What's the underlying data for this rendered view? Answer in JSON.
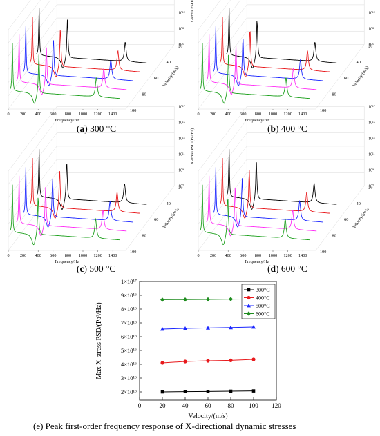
{
  "chart_data": [
    {
      "type": "line",
      "view": "3d-waterfall",
      "caption_letter": "a",
      "caption_text": "300 °C",
      "xlabel": "Frequency/Hz",
      "ylabel": "Velocity/(m/s)",
      "zlabel": "X-stress PSD/(Pa²/Hz)",
      "x_ticks": [
        "0",
        "200",
        "400",
        "600",
        "800",
        "1000",
        "1200",
        "1400"
      ],
      "y_ticks": [
        "20",
        "40",
        "60",
        "80",
        "100"
      ],
      "z_ticks": [
        "10⁶",
        "10⁸",
        "10¹⁰",
        "10¹²",
        "10¹⁴",
        "10¹⁶"
      ],
      "z_scale": "log",
      "series": [
        {
          "velocity": 20,
          "color": "#000000",
          "peaks_hz": [
            55,
            435,
            1210
          ]
        },
        {
          "velocity": 40,
          "color": "#e8191c",
          "peaks_hz": [
            55,
            430,
            1200
          ]
        },
        {
          "velocity": 60,
          "color": "#1a26ff",
          "peaks_hz": [
            55,
            425,
            1195
          ]
        },
        {
          "velocity": 80,
          "color": "#ff2ef5",
          "peaks_hz": [
            55,
            420,
            1190
          ]
        },
        {
          "velocity": 100,
          "color": "#1ea01e",
          "peaks_hz": [
            55,
            410,
            1180
          ]
        }
      ]
    },
    {
      "type": "line",
      "view": "3d-waterfall",
      "caption_letter": "b",
      "caption_text": "400 °C",
      "xlabel": "Frequency/Hz",
      "ylabel": "Velocity/(m/s)",
      "zlabel": "X-stress PSD/(Pa²/Hz)",
      "x_ticks": [
        "0",
        "200",
        "400",
        "600",
        "800",
        "1000",
        "1200",
        "1400"
      ],
      "y_ticks": [
        "20",
        "40",
        "60",
        "80",
        "100"
      ],
      "z_ticks": [
        "10⁶",
        "10⁸",
        "10¹⁰",
        "10¹²",
        "10¹⁴",
        "10¹⁶"
      ],
      "z_scale": "log",
      "series": [
        {
          "velocity": 20,
          "color": "#000000",
          "peaks_hz": [
            55,
            430,
            1205
          ]
        },
        {
          "velocity": 40,
          "color": "#e8191c",
          "peaks_hz": [
            55,
            425,
            1195
          ]
        },
        {
          "velocity": 60,
          "color": "#1a26ff",
          "peaks_hz": [
            55,
            420,
            1190
          ]
        },
        {
          "velocity": 80,
          "color": "#ff2ef5",
          "peaks_hz": [
            55,
            415,
            1185
          ]
        },
        {
          "velocity": 100,
          "color": "#1ea01e",
          "peaks_hz": [
            55,
            405,
            1175
          ]
        }
      ]
    },
    {
      "type": "line",
      "view": "3d-waterfall",
      "caption_letter": "c",
      "caption_text": "500 °C",
      "xlabel": "Frequency/Hz",
      "ylabel": "Velocity/(m/s)",
      "zlabel": "X-stress PSD/(Pa²/Hz)",
      "x_ticks": [
        "0",
        "200",
        "400",
        "600",
        "800",
        "1000",
        "1200",
        "1400"
      ],
      "y_ticks": [
        "20",
        "40",
        "60",
        "80",
        "100"
      ],
      "z_ticks": [
        "10⁷",
        "10⁹",
        "10¹¹",
        "10¹³",
        "10¹⁵",
        "10¹⁷"
      ],
      "z_scale": "log",
      "series": [
        {
          "velocity": 20,
          "color": "#000000",
          "peaks_hz": [
            55,
            425,
            1200
          ]
        },
        {
          "velocity": 40,
          "color": "#e8191c",
          "peaks_hz": [
            55,
            420,
            1190
          ]
        },
        {
          "velocity": 60,
          "color": "#1a26ff",
          "peaks_hz": [
            55,
            415,
            1185
          ]
        },
        {
          "velocity": 80,
          "color": "#ff2ef5",
          "peaks_hz": [
            55,
            410,
            1180
          ]
        },
        {
          "velocity": 100,
          "color": "#1ea01e",
          "peaks_hz": [
            55,
            400,
            1170
          ]
        }
      ]
    },
    {
      "type": "line",
      "view": "3d-waterfall",
      "caption_letter": "d",
      "caption_text": "600 °C",
      "xlabel": "Frequency/Hz",
      "ylabel": "Velocity/(m/s)",
      "zlabel": "X-stress PSD/（Pa²/Hz）",
      "x_ticks": [
        "0",
        "200",
        "400",
        "600",
        "800",
        "1000",
        "1200",
        "1400"
      ],
      "y_ticks": [
        "20",
        "40",
        "60",
        "80",
        "100"
      ],
      "z_ticks": [
        "10⁷",
        "10⁹",
        "10¹¹",
        "10¹³",
        "10¹⁵",
        "10¹⁷"
      ],
      "z_scale": "log",
      "series": [
        {
          "velocity": 20,
          "color": "#000000",
          "peaks_hz": [
            55,
            420,
            1195
          ]
        },
        {
          "velocity": 40,
          "color": "#e8191c",
          "peaks_hz": [
            55,
            415,
            1185
          ]
        },
        {
          "velocity": 60,
          "color": "#1a26ff",
          "peaks_hz": [
            55,
            410,
            1180
          ]
        },
        {
          "velocity": 80,
          "color": "#ff2ef5",
          "peaks_hz": [
            55,
            405,
            1175
          ]
        },
        {
          "velocity": 100,
          "color": "#1ea01e",
          "peaks_hz": [
            55,
            395,
            1165
          ]
        }
      ]
    },
    {
      "type": "line",
      "caption": "(e) Peak first-order frequency response of X-directional dynamic stresses",
      "xlabel": "Velocity/(m/s)",
      "ylabel": "Max X-stress PSD/(Pa²/Hz)",
      "xlim": [
        0,
        120
      ],
      "ylim": [
        0,
        1e+17
      ],
      "x_ticks": [
        "0",
        "20",
        "40",
        "60",
        "80",
        "100",
        "120"
      ],
      "y_ticks": [
        "0",
        "2×10¹⁶",
        "3×10¹⁶",
        "4×10¹⁶",
        "5×10¹⁶",
        "6×10¹⁶",
        "7×10¹⁶",
        "8×10¹⁶",
        "9×10¹⁶",
        "1×10¹⁷"
      ],
      "legend_position": "top-right",
      "x": [
        20,
        40,
        60,
        80,
        100
      ],
      "series": [
        {
          "name": "300°C",
          "color": "#000000",
          "marker": "square",
          "values": [
            2e+16,
            2.02e+16,
            2.03e+16,
            2.05e+16,
            2.07e+16
          ]
        },
        {
          "name": "400°C",
          "color": "#e8191c",
          "marker": "circle",
          "values": [
            4.1e+16,
            4.2e+16,
            4.25e+16,
            4.28e+16,
            4.35e+16
          ]
        },
        {
          "name": "500°C",
          "color": "#1a26ff",
          "marker": "triangle",
          "values": [
            6.55e+16,
            6.6e+16,
            6.63e+16,
            6.66e+16,
            6.7e+16
          ]
        },
        {
          "name": "600°C",
          "color": "#1e8c1e",
          "marker": "diamond",
          "values": [
            8.68e+16,
            8.69e+16,
            8.7e+16,
            8.72e+16,
            8.73e+16
          ]
        }
      ]
    }
  ]
}
